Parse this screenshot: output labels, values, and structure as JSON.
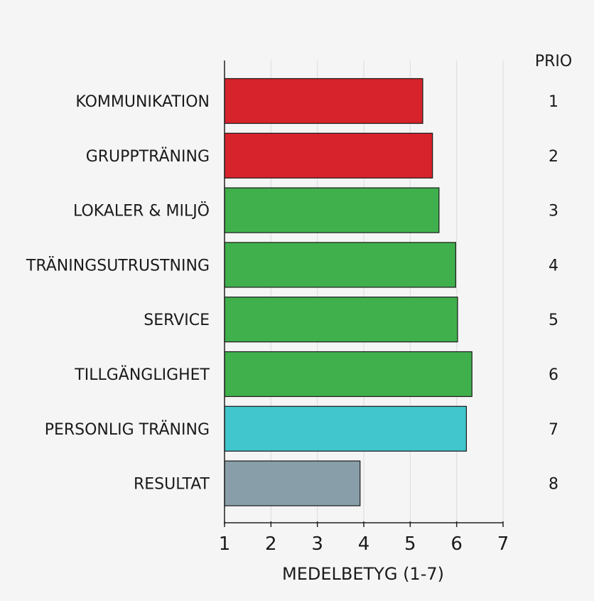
{
  "chart_data": {
    "type": "bar",
    "orientation": "horizontal",
    "categories": [
      "KOMMUNIKATION",
      "GRUPPTRÄNING",
      "LOKALER & MILJÖ",
      "TRÄNINGSUTRUSTNING",
      "SERVICE",
      "TILLGÄNGLIGHET",
      "PERSONLIG TRÄNING",
      "RESULTAT"
    ],
    "values": [
      5.27,
      5.48,
      5.62,
      5.98,
      6.02,
      6.33,
      6.21,
      3.92
    ],
    "colors": [
      "#d7232b",
      "#d7232b",
      "#40b04d",
      "#40b04d",
      "#40b04d",
      "#40b04d",
      "#40c6cc",
      "#889ea8"
    ],
    "prio_header": "PRIO",
    "prio": [
      "1",
      "2",
      "3",
      "4",
      "5",
      "6",
      "7",
      "8"
    ],
    "xlabel": "MEDELBETYG (1-7)",
    "ylabel": "",
    "title": "",
    "xlim": [
      1,
      7
    ],
    "xticks": [
      "1",
      "2",
      "3",
      "4",
      "5",
      "6",
      "7"
    ],
    "grid": "vertical"
  }
}
